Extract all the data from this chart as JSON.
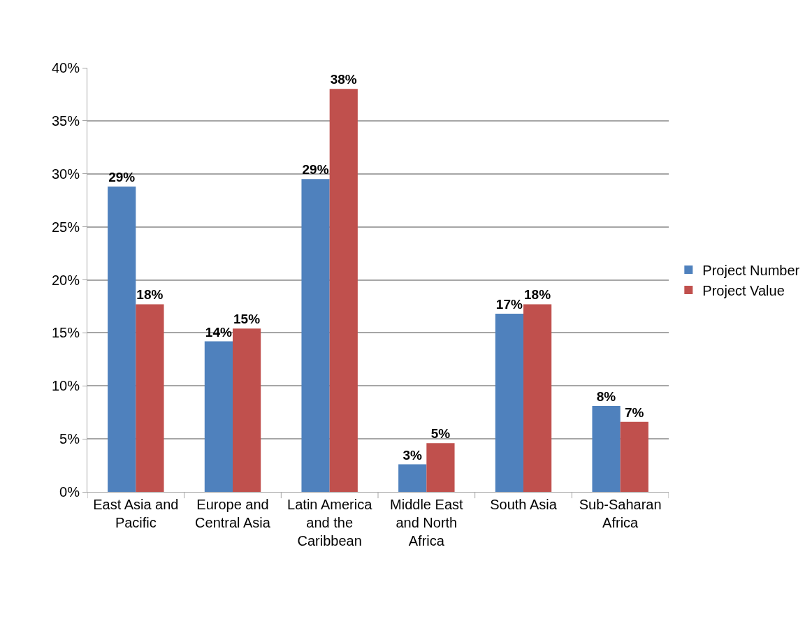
{
  "chart_data": {
    "type": "bar",
    "categories": [
      "East Asia and Pacific",
      "Europe and Central Asia",
      "Latin America and the Caribbean",
      "Middle East and North Africa",
      "South Asia",
      "Sub-Saharan Africa"
    ],
    "series": [
      {
        "name": "Project Number",
        "color": "#4f81bd",
        "values": [
          28.8,
          14.2,
          29.5,
          2.6,
          16.8,
          8.1
        ],
        "value_labels": [
          "29%",
          "14%",
          "29%",
          "3%",
          "17%",
          "8%"
        ]
      },
      {
        "name": "Project Value",
        "color": "#c0504d",
        "values": [
          17.7,
          15.4,
          38.0,
          4.6,
          17.7,
          6.6
        ],
        "value_labels": [
          "18%",
          "15%",
          "38%",
          "5%",
          "18%",
          "7%"
        ]
      }
    ],
    "ylim": [
      0,
      40
    ],
    "yticks": [
      {
        "value": 0,
        "label": "0%"
      },
      {
        "value": 5,
        "label": "5%"
      },
      {
        "value": 10,
        "label": "10%"
      },
      {
        "value": 15,
        "label": "15%"
      },
      {
        "value": 20,
        "label": "20%"
      },
      {
        "value": 25,
        "label": "25%"
      },
      {
        "value": 30,
        "label": "30%"
      },
      {
        "value": 35,
        "label": "35%"
      },
      {
        "value": 40,
        "label": "40%"
      }
    ],
    "grid": "y",
    "legend": "right"
  }
}
